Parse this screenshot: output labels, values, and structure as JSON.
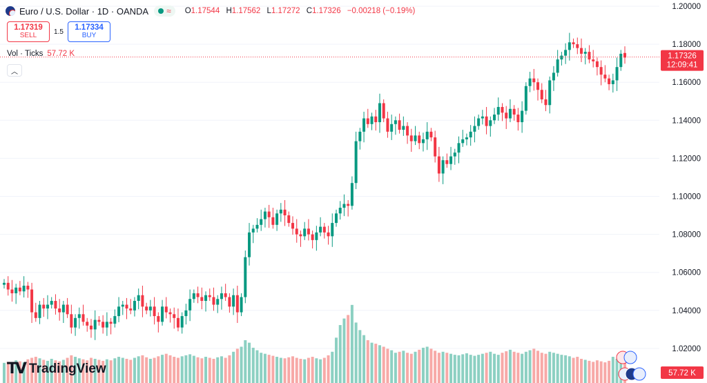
{
  "header": {
    "title": "Euro / U.S. Dollar · 1D · OANDA",
    "o_label": "O",
    "o": "1.17544",
    "h_label": "H",
    "h": "1.17562",
    "l_label": "L",
    "l": "1.17272",
    "c_label": "C",
    "c": "1.17326",
    "change": "−0.00218 (−0.19%)"
  },
  "trade": {
    "sell_price": "1.17319",
    "sell_label": "SELL",
    "spread": "1.5",
    "buy_price": "1.17334",
    "buy_label": "BUY"
  },
  "volume": {
    "label": "Vol · Ticks",
    "value": "57.72 K"
  },
  "last_price": {
    "value": "1.17326",
    "countdown": "12:09:41"
  },
  "logo": {
    "text": "TradingView"
  },
  "colors": {
    "up": "#089981",
    "down": "#f23645",
    "vol_up": "#8cd0c2",
    "vol_down": "#f7a9a7"
  },
  "chart_data": {
    "type": "candlestick",
    "ylim": [
      1.0,
      1.2
    ],
    "y_ticks": [
      "1.02000",
      "1.04000",
      "1.06000",
      "1.08000",
      "1.10000",
      "1.12000",
      "1.14000",
      "1.16000",
      "1.18000",
      "1.20000"
    ],
    "series": [
      {
        "name": "EUR/USD",
        "closes": [
          1.0545,
          1.051,
          1.049,
          1.052,
          1.05,
          1.053,
          1.051,
          1.039,
          1.036,
          1.043,
          1.041,
          1.043,
          1.045,
          1.041,
          1.039,
          1.043,
          1.038,
          1.031,
          1.036,
          1.038,
          1.034,
          1.032,
          1.03,
          1.035,
          1.034,
          1.031,
          1.034,
          1.033,
          1.037,
          1.042,
          1.043,
          1.041,
          1.04,
          1.045,
          1.048,
          1.042,
          1.04,
          1.042,
          1.037,
          1.034,
          1.042,
          1.039,
          1.038,
          1.036,
          1.031,
          1.037,
          1.04,
          1.046,
          1.049,
          1.047,
          1.045,
          1.048,
          1.047,
          1.043,
          1.046,
          1.049,
          1.047,
          1.042,
          1.048,
          1.039,
          1.047,
          1.068,
          1.081,
          1.083,
          1.085,
          1.088,
          1.092,
          1.089,
          1.085,
          1.091,
          1.093,
          1.09,
          1.086,
          1.083,
          1.08,
          1.079,
          1.083,
          1.08,
          1.077,
          1.081,
          1.084,
          1.081,
          1.079,
          1.086,
          1.091,
          1.094,
          1.096,
          1.095,
          1.107,
          1.129,
          1.134,
          1.141,
          1.138,
          1.142,
          1.139,
          1.149,
          1.141,
          1.134,
          1.138,
          1.14,
          1.135,
          1.137,
          1.132,
          1.129,
          1.132,
          1.128,
          1.13,
          1.134,
          1.131,
          1.121,
          1.112,
          1.119,
          1.117,
          1.121,
          1.123,
          1.128,
          1.13,
          1.131,
          1.134,
          1.137,
          1.141,
          1.142,
          1.137,
          1.14,
          1.143,
          1.147,
          1.144,
          1.141,
          1.146,
          1.143,
          1.139,
          1.145,
          1.158,
          1.162,
          1.16,
          1.156,
          1.151,
          1.148,
          1.161,
          1.165,
          1.172,
          1.174,
          1.177,
          1.181,
          1.18,
          1.178,
          1.175,
          1.176,
          1.172,
          1.171,
          1.168,
          1.164,
          1.162,
          1.159,
          1.161,
          1.168,
          1.175,
          1.173
        ],
        "opens": [
          1.0535,
          1.0545,
          1.051,
          1.049,
          1.052,
          1.05,
          1.053,
          1.051,
          1.039,
          1.036,
          1.043,
          1.041,
          1.043,
          1.045,
          1.041,
          1.039,
          1.043,
          1.038,
          1.031,
          1.036,
          1.038,
          1.034,
          1.032,
          1.03,
          1.035,
          1.034,
          1.031,
          1.034,
          1.033,
          1.037,
          1.042,
          1.043,
          1.041,
          1.04,
          1.045,
          1.048,
          1.042,
          1.04,
          1.042,
          1.037,
          1.034,
          1.042,
          1.039,
          1.038,
          1.036,
          1.031,
          1.037,
          1.04,
          1.046,
          1.049,
          1.047,
          1.045,
          1.048,
          1.047,
          1.043,
          1.046,
          1.049,
          1.047,
          1.042,
          1.048,
          1.039,
          1.047,
          1.068,
          1.081,
          1.083,
          1.085,
          1.088,
          1.092,
          1.089,
          1.085,
          1.091,
          1.093,
          1.09,
          1.086,
          1.083,
          1.08,
          1.079,
          1.083,
          1.08,
          1.077,
          1.081,
          1.084,
          1.081,
          1.079,
          1.086,
          1.091,
          1.094,
          1.096,
          1.095,
          1.107,
          1.129,
          1.134,
          1.141,
          1.138,
          1.142,
          1.139,
          1.149,
          1.141,
          1.134,
          1.138,
          1.14,
          1.135,
          1.137,
          1.132,
          1.129,
          1.132,
          1.128,
          1.13,
          1.134,
          1.131,
          1.121,
          1.112,
          1.119,
          1.117,
          1.121,
          1.123,
          1.128,
          1.13,
          1.131,
          1.134,
          1.137,
          1.141,
          1.142,
          1.137,
          1.14,
          1.143,
          1.147,
          1.144,
          1.141,
          1.146,
          1.143,
          1.139,
          1.145,
          1.158,
          1.162,
          1.16,
          1.156,
          1.151,
          1.148,
          1.161,
          1.165,
          1.172,
          1.174,
          1.177,
          1.181,
          1.18,
          1.178,
          1.175,
          1.176,
          1.172,
          1.171,
          1.168,
          1.164,
          1.162,
          1.159,
          1.161,
          1.168,
          1.1754
        ],
        "volumes": [
          0.4,
          0.42,
          0.38,
          0.45,
          0.43,
          0.41,
          0.47,
          0.5,
          0.52,
          0.49,
          0.46,
          0.44,
          0.48,
          0.45,
          0.43,
          0.46,
          0.5,
          0.55,
          0.52,
          0.49,
          0.47,
          0.45,
          0.5,
          0.48,
          0.46,
          0.44,
          0.47,
          0.45,
          0.49,
          0.52,
          0.5,
          0.48,
          0.46,
          0.5,
          0.53,
          0.55,
          0.51,
          0.48,
          0.5,
          0.53,
          0.56,
          0.58,
          0.55,
          0.52,
          0.5,
          0.53,
          0.55,
          0.57,
          0.54,
          0.51,
          0.49,
          0.52,
          0.5,
          0.48,
          0.51,
          0.53,
          0.5,
          0.55,
          0.62,
          0.68,
          0.72,
          0.85,
          0.8,
          0.7,
          0.65,
          0.6,
          0.58,
          0.56,
          0.54,
          0.52,
          0.5,
          0.49,
          0.51,
          0.53,
          0.5,
          0.48,
          0.47,
          0.5,
          0.52,
          0.49,
          0.47,
          0.5,
          0.55,
          0.62,
          0.9,
          1.15,
          1.28,
          1.35,
          1.55,
          1.2,
          1.05,
          0.95,
          0.85,
          0.8,
          0.78,
          0.75,
          0.72,
          0.68,
          0.65,
          0.6,
          0.62,
          0.64,
          0.6,
          0.58,
          0.62,
          0.66,
          0.7,
          0.72,
          0.68,
          0.64,
          0.6,
          0.62,
          0.6,
          0.58,
          0.56,
          0.55,
          0.57,
          0.59,
          0.56,
          0.54,
          0.56,
          0.58,
          0.6,
          0.62,
          0.58,
          0.56,
          0.6,
          0.63,
          0.66,
          0.62,
          0.6,
          0.58,
          0.62,
          0.65,
          0.68,
          0.64,
          0.6,
          0.58,
          0.62,
          0.6,
          0.58,
          0.56,
          0.55,
          0.53,
          0.5,
          0.52,
          0.48,
          0.46,
          0.44,
          0.42,
          0.45,
          0.43,
          0.41,
          0.44,
          0.52,
          0.48,
          0.45,
          0.43
        ]
      }
    ]
  }
}
